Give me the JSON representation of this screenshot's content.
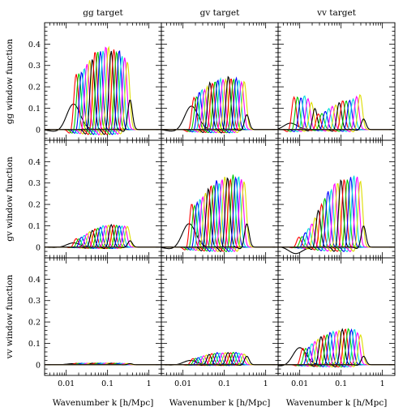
{
  "chart_data": {
    "type": "line",
    "layout": "3x3 grid of panels",
    "column_titles": [
      "gg target",
      "gv target",
      "vv target"
    ],
    "row_labels": [
      "gg window function",
      "gv window function",
      "vv window function"
    ],
    "xlabel": "Wavenumber k [h/Mpc]",
    "xscale": "log",
    "xlim": [
      0.003,
      2
    ],
    "ylim": [
      -0.05,
      0.5
    ],
    "x_tick_labels": [
      "0.01",
      "0.1",
      "1"
    ],
    "y_tick_labels": [
      "0",
      "0.1",
      "0.2",
      "0.3",
      "0.4"
    ],
    "grid": false,
    "series_colors": [
      "#000000",
      "#ff0000",
      "#00cc00",
      "#0000ff",
      "#00dddd",
      "#ff00ff",
      "#dddd00"
    ],
    "panels": [
      {
        "row": 0,
        "col": 0,
        "n_curves": 22,
        "first_bin": {
          "center_k": 0.015,
          "peak": 0.12
        },
        "envelope": [
          [
            0.02,
            0.27
          ],
          [
            0.05,
            0.37
          ],
          [
            0.1,
            0.4
          ],
          [
            0.2,
            0.38
          ],
          [
            0.3,
            0.33
          ]
        ],
        "last_bin": {
          "center_k": 0.35,
          "peak": 0.14
        }
      },
      {
        "row": 0,
        "col": 1,
        "n_curves": 22,
        "first_bin": {
          "center_k": 0.016,
          "peak": 0.11
        },
        "envelope": [
          [
            0.02,
            0.16
          ],
          [
            0.05,
            0.23
          ],
          [
            0.1,
            0.25
          ],
          [
            0.2,
            0.25
          ],
          [
            0.3,
            0.23
          ]
        ],
        "last_bin": {
          "center_k": 0.35,
          "peak": 0.07
        }
      },
      {
        "row": 0,
        "col": 2,
        "n_curves": 22,
        "first_bin": {
          "center_k": 0.006,
          "peak": 0.03
        },
        "envelope": [
          [
            0.015,
            0.16
          ],
          [
            0.03,
            0.07
          ],
          [
            0.05,
            0.1
          ],
          [
            0.1,
            0.14
          ],
          [
            0.2,
            0.15
          ],
          [
            0.3,
            0.17
          ]
        ],
        "last_bin": {
          "center_k": 0.35,
          "peak": 0.05
        }
      },
      {
        "row": 1,
        "col": 0,
        "n_curves": 22,
        "first_bin": {
          "center_k": 0.015,
          "peak": 0.02
        },
        "envelope": [
          [
            0.02,
            0.04
          ],
          [
            0.05,
            0.09
          ],
          [
            0.1,
            0.11
          ],
          [
            0.2,
            0.1
          ],
          [
            0.3,
            0.1
          ]
        ],
        "last_bin": {
          "center_k": 0.35,
          "peak": 0.03
        }
      },
      {
        "row": 1,
        "col": 1,
        "n_curves": 22,
        "first_bin": {
          "center_k": 0.014,
          "peak": 0.11
        },
        "envelope": [
          [
            0.02,
            0.21
          ],
          [
            0.05,
            0.3
          ],
          [
            0.1,
            0.34
          ],
          [
            0.2,
            0.34
          ],
          [
            0.3,
            0.32
          ]
        ],
        "last_bin": {
          "center_k": 0.35,
          "peak": 0.11
        }
      },
      {
        "row": 1,
        "col": 2,
        "n_curves": 22,
        "first_bin": {
          "center_k": 0.008,
          "peak": -0.03
        },
        "envelope": [
          [
            0.012,
            0.05
          ],
          [
            0.02,
            0.12
          ],
          [
            0.05,
            0.27
          ],
          [
            0.1,
            0.34
          ],
          [
            0.2,
            0.34
          ],
          [
            0.3,
            0.33
          ]
        ],
        "last_bin": {
          "center_k": 0.35,
          "peak": 0.1
        }
      },
      {
        "row": 2,
        "col": 0,
        "n_curves": 22,
        "first_bin": {
          "center_k": 0.015,
          "peak": 0.005
        },
        "envelope": [
          [
            0.02,
            0.007
          ],
          [
            0.1,
            0.008
          ],
          [
            0.3,
            0.006
          ]
        ],
        "last_bin": {
          "center_k": 0.35,
          "peak": 0.005
        }
      },
      {
        "row": 2,
        "col": 1,
        "n_curves": 22,
        "first_bin": {
          "center_k": 0.015,
          "peak": 0.02
        },
        "envelope": [
          [
            0.02,
            0.03
          ],
          [
            0.05,
            0.055
          ],
          [
            0.1,
            0.06
          ],
          [
            0.2,
            0.06
          ],
          [
            0.3,
            0.05
          ]
        ],
        "last_bin": {
          "center_k": 0.35,
          "peak": 0.04
        }
      },
      {
        "row": 2,
        "col": 2,
        "n_curves": 22,
        "first_bin": {
          "center_k": 0.01,
          "peak": 0.08
        },
        "envelope": [
          [
            0.015,
            0.08
          ],
          [
            0.03,
            0.13
          ],
          [
            0.05,
            0.15
          ],
          [
            0.1,
            0.17
          ],
          [
            0.2,
            0.17
          ],
          [
            0.3,
            0.14
          ]
        ],
        "last_bin": {
          "center_k": 0.35,
          "peak": 0.04
        }
      }
    ]
  }
}
